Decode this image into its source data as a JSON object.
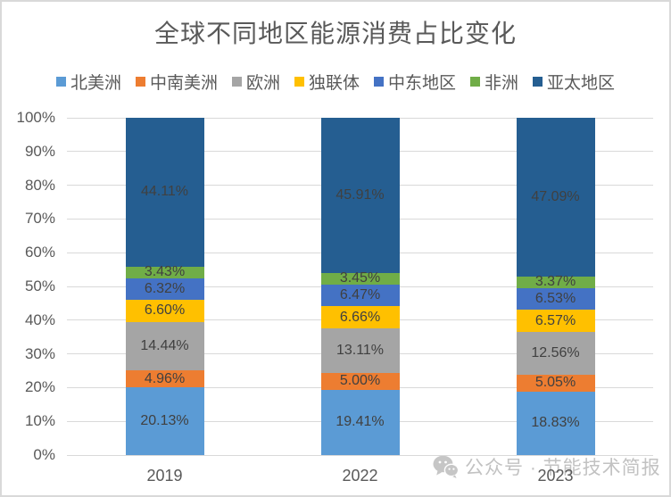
{
  "title": "全球不同地区能源消费占比变化",
  "watermark": {
    "text": "公众号 · 节能技术简报",
    "icon": "wechat-icon"
  },
  "chart_data": {
    "type": "bar",
    "stacked": true,
    "title": "全球不同地区能源消费占比变化",
    "categories": [
      "2019",
      "2022",
      "2023"
    ],
    "series": [
      {
        "name": "北美洲",
        "color": "#5B9BD5",
        "values": [
          20.13,
          19.41,
          18.83
        ],
        "labels": [
          "20.13%",
          "19.41%",
          "18.83%"
        ]
      },
      {
        "name": "中南美洲",
        "color": "#ED7D31",
        "values": [
          4.96,
          5.0,
          5.05
        ],
        "labels": [
          "4.96%",
          "5.00%",
          "5.05%"
        ]
      },
      {
        "name": "欧洲",
        "color": "#A5A5A5",
        "values": [
          14.44,
          13.11,
          12.56
        ],
        "labels": [
          "14.44%",
          "13.11%",
          "12.56%"
        ]
      },
      {
        "name": "独联体",
        "color": "#FFC000",
        "values": [
          6.6,
          6.66,
          6.57
        ],
        "labels": [
          "6.60%",
          "6.66%",
          "6.57%"
        ]
      },
      {
        "name": "中东地区",
        "color": "#4472C4",
        "values": [
          6.32,
          6.47,
          6.53
        ],
        "labels": [
          "6.32%",
          "6.47%",
          "6.53%"
        ]
      },
      {
        "name": "非洲",
        "color": "#70AD47",
        "values": [
          3.43,
          3.45,
          3.37
        ],
        "labels": [
          "3.43%",
          "3.45%",
          "3.37%"
        ]
      },
      {
        "name": "亚太地区",
        "color": "#255E91",
        "values": [
          44.11,
          45.91,
          47.09
        ],
        "labels": [
          "44.11%",
          "45.91%",
          "47.09%"
        ]
      }
    ],
    "y_ticks": [
      "0%",
      "10%",
      "20%",
      "30%",
      "40%",
      "50%",
      "60%",
      "70%",
      "80%",
      "90%",
      "100%"
    ],
    "ylim": [
      0,
      100
    ],
    "grid": true,
    "legend_position": "top",
    "data_labels": true,
    "colors": {
      "grid": "#D9D9D9",
      "axis_text": "#595959",
      "data_label_text": "#404040"
    }
  }
}
